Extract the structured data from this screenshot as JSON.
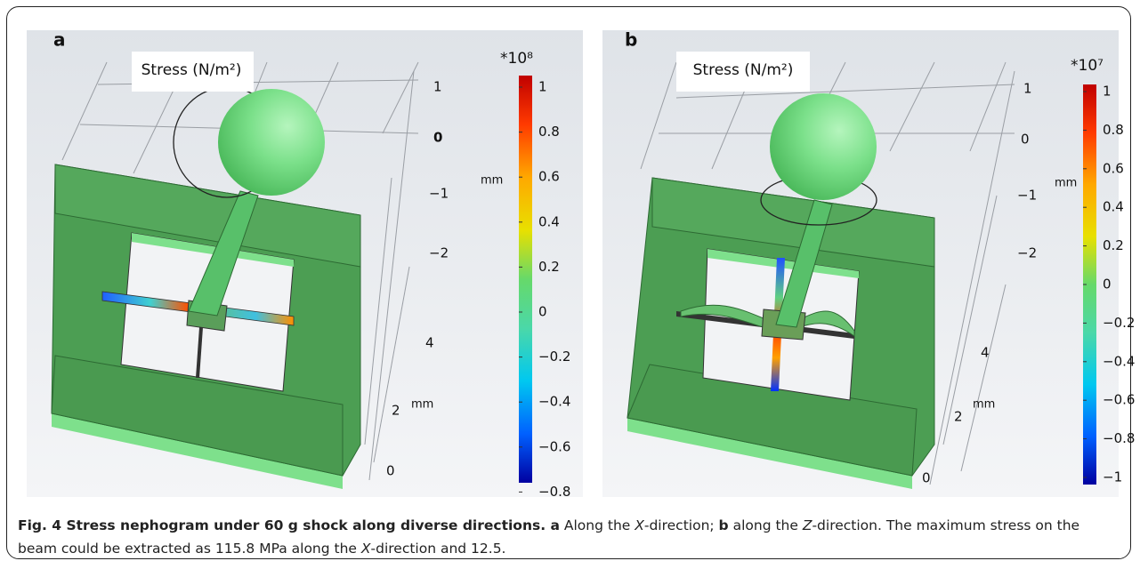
{
  "panels": [
    {
      "label": "a",
      "title": "Stress (N/m²)",
      "scale": "*10⁸",
      "colorbar_ticks": [
        "1",
        "0.8",
        "0.6",
        "0.4",
        "0.2",
        "0",
        "−0.2",
        "−0.4",
        "−0.6",
        "−0.8"
      ],
      "axis_labels": [
        "1",
        "0",
        "−1",
        "mm",
        "−2",
        "4",
        "2",
        "mm",
        "0"
      ]
    },
    {
      "label": "b",
      "title": "Stress (N/m²)",
      "scale": "*10⁷",
      "colorbar_ticks": [
        "1",
        "0.8",
        "0.6",
        "0.4",
        "0.2",
        "0",
        "−0.2",
        "−0.4",
        "−0.6",
        "−0.8",
        "−1"
      ],
      "axis_labels": [
        "1",
        "0",
        "−1",
        "mm",
        "−2",
        "4",
        "2",
        "mm",
        "0"
      ]
    }
  ],
  "caption": {
    "runs": [
      {
        "text": "Fig. 4 Stress nephogram under 60 g shock along diverse directions. a",
        "style": "bold"
      },
      {
        "text": " Along the ",
        "style": "normal"
      },
      {
        "text": "X",
        "style": "italic"
      },
      {
        "text": "-direction; ",
        "style": "normal"
      },
      {
        "text": "b",
        "style": "bold"
      },
      {
        "text": " along the ",
        "style": "normal"
      },
      {
        "text": "Z",
        "style": "italic"
      },
      {
        "text": "-direction. The maximum stress on the beam could be extracted as 115.8 MPa along the ",
        "style": "normal"
      },
      {
        "text": "X",
        "style": "italic"
      },
      {
        "text": "-direction and 12.5.",
        "style": "normal"
      }
    ]
  }
}
